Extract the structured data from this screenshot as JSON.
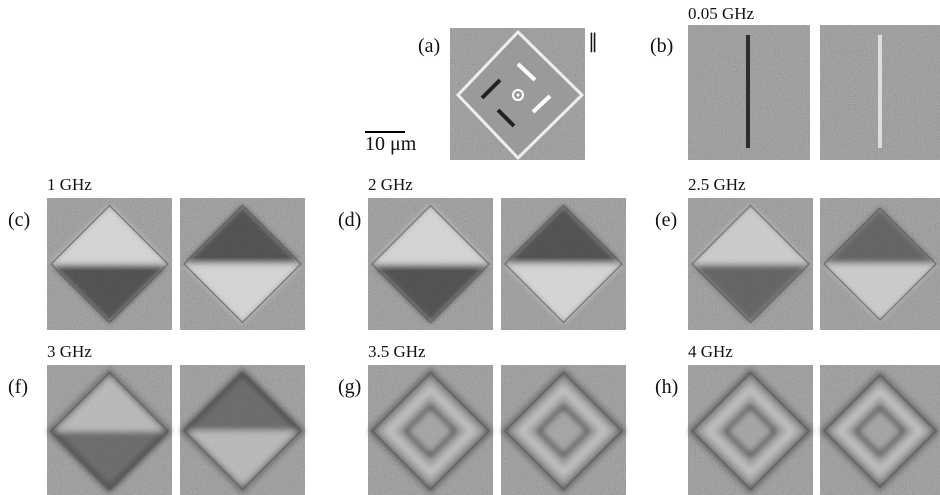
{
  "panels": [
    {
      "label": "(a)"
    },
    {
      "label": "(b)",
      "frequency": "0.05 GHz"
    },
    {
      "label": "(c)",
      "frequency": "1 GHz"
    },
    {
      "label": "(d)",
      "frequency": "2 GHz"
    },
    {
      "label": "(e)",
      "frequency": "2.5 GHz"
    },
    {
      "label": "(f)",
      "frequency": "3 GHz"
    },
    {
      "label": "(g)",
      "frequency": "3.5 GHz"
    },
    {
      "label": "(h)",
      "frequency": "4 GHz"
    }
  ],
  "scale_bar": "10 μm",
  "polarization": "∥"
}
